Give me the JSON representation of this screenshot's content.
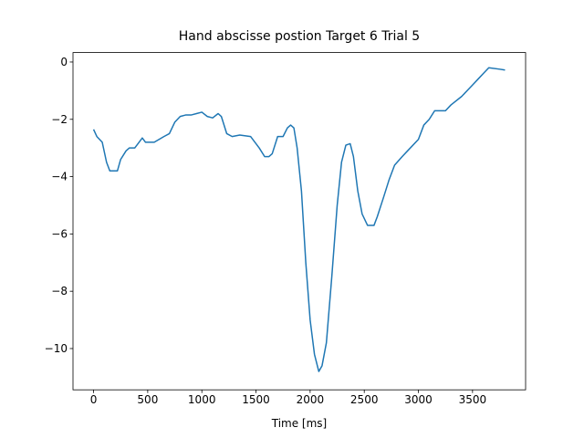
{
  "chart_data": {
    "type": "line",
    "title": "Hand abscisse postion Target 6 Trial 5",
    "x_label": "Time [ms]",
    "x": [
      0,
      30,
      80,
      120,
      150,
      220,
      250,
      300,
      330,
      380,
      400,
      450,
      480,
      560,
      650,
      700,
      750,
      800,
      850,
      900,
      950,
      1000,
      1050,
      1100,
      1150,
      1180,
      1230,
      1280,
      1350,
      1450,
      1530,
      1580,
      1620,
      1650,
      1700,
      1750,
      1790,
      1820,
      1850,
      1880,
      1920,
      1960,
      2000,
      2040,
      2080,
      2110,
      2150,
      2200,
      2250,
      2290,
      2330,
      2370,
      2400,
      2440,
      2480,
      2530,
      2590,
      2620,
      2680,
      2730,
      2780,
      2850,
      2900,
      3000,
      3050,
      3100,
      3150,
      3250,
      3300,
      3400,
      3450,
      3500,
      3550,
      3600,
      3650,
      3750,
      3800
    ],
    "series": [
      {
        "color": "#1f77b4",
        "values": [
          -2.35,
          -2.6,
          -2.8,
          -3.5,
          -3.8,
          -3.8,
          -3.4,
          -3.1,
          -3.0,
          -3.0,
          -2.9,
          -2.65,
          -2.8,
          -2.8,
          -2.6,
          -2.5,
          -2.1,
          -1.9,
          -1.85,
          -1.85,
          -1.8,
          -1.75,
          -1.9,
          -1.95,
          -1.8,
          -1.9,
          -2.5,
          -2.6,
          -2.55,
          -2.6,
          -3.0,
          -3.3,
          -3.3,
          -3.2,
          -2.6,
          -2.6,
          -2.3,
          -2.2,
          -2.3,
          -3.0,
          -4.5,
          -7.0,
          -9.0,
          -10.2,
          -10.8,
          -10.6,
          -9.8,
          -7.5,
          -5.0,
          -3.5,
          -2.9,
          -2.85,
          -3.3,
          -4.5,
          -5.3,
          -5.7,
          -5.7,
          -5.4,
          -4.7,
          -4.1,
          -3.6,
          -3.3,
          -3.1,
          -2.7,
          -2.2,
          -2.0,
          -1.7,
          -1.7,
          -1.5,
          -1.2,
          -1.0,
          -0.8,
          -0.6,
          -0.4,
          -0.2,
          -0.25,
          -0.28
        ]
      }
    ],
    "xlim": [
      -190,
      3990
    ],
    "ylim": [
      -11.44,
      0.33
    ],
    "xticks": [
      0,
      500,
      1000,
      1500,
      2000,
      2500,
      3000,
      3500
    ],
    "yticks": [
      {
        "value": -10,
        "label": "−10"
      },
      {
        "value": -8,
        "label": "−8"
      },
      {
        "value": -6,
        "label": "−6"
      },
      {
        "value": -4,
        "label": "−4"
      },
      {
        "value": -2,
        "label": "−2"
      },
      0
    ]
  }
}
